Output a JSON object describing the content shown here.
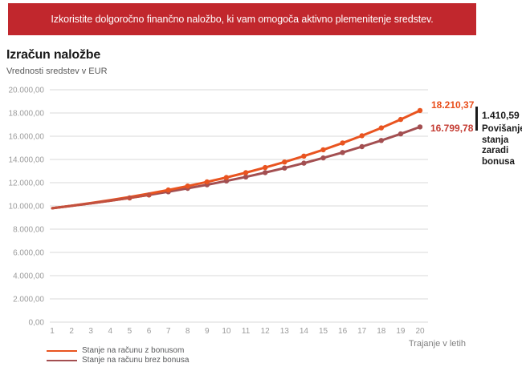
{
  "banner": {
    "text": "Izkoristite dolgoročno finančno naložbo, ki vam omogoča aktivno plemenitenje sredstev.",
    "bg": "#C1272D",
    "text_color": "#FFFFFF"
  },
  "header": {
    "title": "Izračun naložbe",
    "subtitle": "Vrednosti sredstev v EUR"
  },
  "chart_data": {
    "type": "line",
    "title": "Izračun naložbe",
    "ylabel": "Vrednosti sredstev v EUR",
    "xlabel": "Trajanje v letih",
    "x": [
      1,
      2,
      3,
      4,
      5,
      6,
      7,
      8,
      9,
      10,
      11,
      12,
      13,
      14,
      15,
      16,
      17,
      18,
      19,
      20
    ],
    "ylim": [
      0,
      20000
    ],
    "grid": true,
    "legend_position": "bottom-left",
    "y_ticks": [
      {
        "value": 20000,
        "label": "20.000,00"
      },
      {
        "value": 18000,
        "label": "18.000,00"
      },
      {
        "value": 16000,
        "label": "16.000,00"
      },
      {
        "value": 14000,
        "label": "14.000,00"
      },
      {
        "value": 12000,
        "label": "12.000,00"
      },
      {
        "value": 10000,
        "label": "10.000,00"
      },
      {
        "value": 8000,
        "label": "8.000,00"
      },
      {
        "value": 6000,
        "label": "6.000,00"
      },
      {
        "value": 4000,
        "label": "4.000,00"
      },
      {
        "value": 2000,
        "label": "2.000,00"
      },
      {
        "value": 0,
        "label": "0,00"
      }
    ],
    "series": [
      {
        "name": "Stanje na računu z bonusom",
        "color": "#E95420",
        "end_label": "18.210,37",
        "end_label_color": "#E94E1B",
        "values": [
          9800,
          10019,
          10252,
          10503,
          10772,
          11063,
          11375,
          11709,
          12068,
          12450,
          12863,
          13305,
          13781,
          14289,
          14833,
          15418,
          16044,
          16717,
          17438,
          18210.37
        ]
      },
      {
        "name": "Stanje na računu brez bonusa",
        "color": "#A34F51",
        "end_label": "16.799,78",
        "end_label_color": "#C43B32",
        "values": [
          9800,
          10005,
          10219,
          10447,
          10690,
          10948,
          11223,
          11514,
          11824,
          12154,
          12500,
          12871,
          13265,
          13684,
          14128,
          14600,
          15102,
          15635,
          16200,
          16799.78
        ]
      }
    ],
    "colors": {
      "grid": "#D9D9D9",
      "tick_text": "#9B9B9B",
      "overlap": "#C2503E"
    },
    "marker_start_year": 5
  },
  "annotation": {
    "difference": "1.410,59",
    "label": "Povišanje stanja zaradi bonusa"
  }
}
